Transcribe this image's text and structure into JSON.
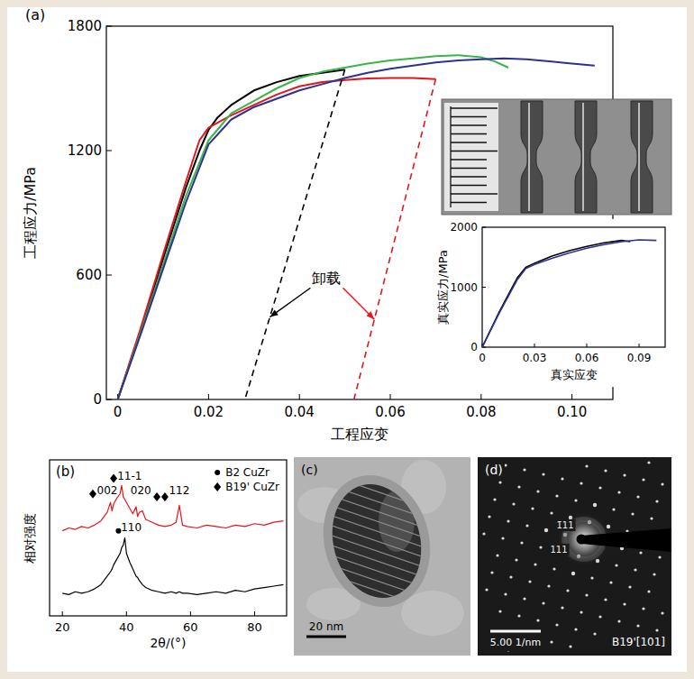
{
  "chart_data": [
    {
      "type": "line",
      "title": "(a)",
      "xlabel": "工程应变",
      "ylabel": "工程应力/MPa",
      "xlim": [
        -0.0025,
        0.109
      ],
      "ylim": [
        0,
        1800
      ],
      "xticks": [
        0,
        0.02,
        0.04,
        0.06,
        0.08,
        {
          "value": 0.1,
          "label": "0.10"
        }
      ],
      "yticks": [
        0,
        600,
        1200,
        1800
      ],
      "series": [
        {
          "color": "#000000",
          "x": [
            0,
            0.005,
            0.01,
            0.015,
            0.018,
            0.02,
            0.022,
            0.025,
            0.03,
            0.035,
            0.04,
            0.045,
            0.05
          ],
          "values": [
            0,
            330,
            680,
            1020,
            1200,
            1300,
            1360,
            1420,
            1490,
            1530,
            1560,
            1575,
            1590
          ]
        },
        {
          "color": "#e8141b",
          "x": [
            0,
            0.005,
            0.01,
            0.015,
            0.018,
            0.02,
            0.025,
            0.03,
            0.035,
            0.04,
            0.045,
            0.05,
            0.055,
            0.06,
            0.065,
            0.07
          ],
          "values": [
            0,
            340,
            700,
            1050,
            1250,
            1310,
            1370,
            1420,
            1470,
            1510,
            1530,
            1540,
            1548,
            1550,
            1550,
            1545
          ]
        },
        {
          "color": "#3ab54a",
          "x": [
            0,
            0.005,
            0.01,
            0.015,
            0.02,
            0.025,
            0.03,
            0.035,
            0.04,
            0.045,
            0.05,
            0.055,
            0.06,
            0.065,
            0.07,
            0.075,
            0.08,
            0.083,
            0.086
          ],
          "values": [
            0,
            320,
            650,
            980,
            1250,
            1380,
            1440,
            1500,
            1550,
            1580,
            1600,
            1620,
            1635,
            1645,
            1655,
            1660,
            1650,
            1630,
            1600
          ]
        },
        {
          "color": "#2e3192",
          "x": [
            0,
            0.005,
            0.01,
            0.015,
            0.02,
            0.025,
            0.03,
            0.035,
            0.04,
            0.045,
            0.05,
            0.055,
            0.06,
            0.065,
            0.07,
            0.075,
            0.08,
            0.085,
            0.09,
            0.095,
            0.1,
            0.105
          ],
          "values": [
            0,
            310,
            630,
            950,
            1230,
            1350,
            1410,
            1450,
            1490,
            1520,
            1550,
            1575,
            1595,
            1610,
            1625,
            1635,
            1640,
            1645,
            1640,
            1630,
            1620,
            1610
          ]
        },
        {
          "color": "#000000",
          "line_style": "dashed",
          "x": [
            0.05,
            0.028
          ],
          "values": [
            1590,
            0
          ]
        },
        {
          "color": "#e8141b",
          "line_style": "dashed",
          "x": [
            0.07,
            0.052
          ],
          "values": [
            1545,
            0
          ]
        }
      ],
      "annotations": [
        {
          "text": "卸载",
          "x": 0.046,
          "y": 560
        }
      ]
    },
    {
      "type": "line",
      "xlabel": "真实应变",
      "ylabel": "真实应力/MPa",
      "xlim": [
        0,
        0.105
      ],
      "ylim": [
        0,
        2000
      ],
      "xticks": [
        0,
        0.03,
        0.06,
        0.09
      ],
      "yticks": [
        0,
        1000,
        2000
      ],
      "series": [
        {
          "color": "#000000",
          "x": [
            0,
            0.01,
            0.02,
            0.025,
            0.03,
            0.04,
            0.05,
            0.06,
            0.07,
            0.08,
            0.085
          ],
          "values": [
            0,
            600,
            1150,
            1330,
            1400,
            1520,
            1610,
            1680,
            1740,
            1780,
            1760
          ]
        },
        {
          "color": "#2e3192",
          "x": [
            0,
            0.01,
            0.02,
            0.025,
            0.03,
            0.04,
            0.05,
            0.06,
            0.07,
            0.08,
            0.09,
            0.1
          ],
          "values": [
            0,
            580,
            1120,
            1310,
            1380,
            1480,
            1570,
            1650,
            1710,
            1760,
            1790,
            1780
          ]
        }
      ]
    },
    {
      "type": "line",
      "title": "(b)",
      "xlabel": "2θ/(°)",
      "ylabel": "相对强度",
      "xlim": [
        16,
        90
      ],
      "ylim": [
        0,
        110
      ],
      "xticks": [
        20,
        40,
        60,
        80
      ],
      "tick_labels": "x",
      "x": [
        20,
        22,
        24,
        26,
        28,
        30,
        32,
        33,
        34,
        35,
        35.5,
        36,
        37,
        38,
        38.5,
        39,
        39.5,
        40,
        41,
        42,
        43,
        43.5,
        44,
        45,
        46,
        48,
        50,
        52,
        54,
        55.5,
        56.5,
        57.5,
        59,
        62,
        65,
        68,
        71,
        74,
        77,
        80,
        83,
        86,
        89
      ],
      "series": [
        {
          "color": "#e8141b",
          "values": [
            60,
            62,
            61,
            63,
            62,
            64,
            67,
            70,
            73,
            80,
            74,
            79,
            83,
            86,
            92,
            84,
            82,
            80,
            76,
            72,
            77,
            70,
            73,
            74,
            68,
            66,
            64,
            63,
            64,
            66,
            78,
            64,
            63,
            62,
            64,
            63,
            62,
            64,
            63,
            65,
            64,
            66,
            67
          ]
        },
        {
          "color": "#000000",
          "values": [
            16,
            15,
            17,
            16,
            17,
            19,
            22,
            25,
            28,
            31,
            33,
            36,
            40,
            44,
            48,
            50,
            55,
            44,
            38,
            33,
            28,
            27,
            25,
            22,
            20,
            18,
            17,
            16,
            17,
            16,
            17,
            16,
            16,
            15,
            16,
            17,
            16,
            18,
            17,
            19,
            20,
            21,
            22
          ]
        },
        {
          "name": "B2 CuZr",
          "type": "scatter",
          "marker": "circle",
          "color": "#000000",
          "x": [
            37.5
          ],
          "values": [
            60
          ]
        },
        {
          "name": "B19' CuZr",
          "type": "scatter",
          "marker": "diamond",
          "color": "#000000",
          "x": [
            29.5,
            36,
            49.5,
            52
          ],
          "values": [
            86,
            97,
            84,
            84
          ]
        }
      ],
      "legend": "upper right",
      "annotations": [
        {
          "text": "002",
          "x": 34,
          "y": 86
        },
        {
          "text": "11-1",
          "x": 41,
          "y": 96
        },
        {
          "text": "020",
          "x": 44.5,
          "y": 86
        },
        {
          "text": "112",
          "x": 56.5,
          "y": 86
        },
        {
          "text": "110",
          "x": 41.5,
          "y": 60
        }
      ]
    }
  ],
  "images": [
    {
      "label": "(c)",
      "scale_bar": "20 nm"
    },
    {
      "label": "(d)",
      "scale_bar": "5.00 1/nm",
      "zone_axis": "B19'[101]",
      "spots": [
        "1̄11",
        "111"
      ]
    }
  ]
}
